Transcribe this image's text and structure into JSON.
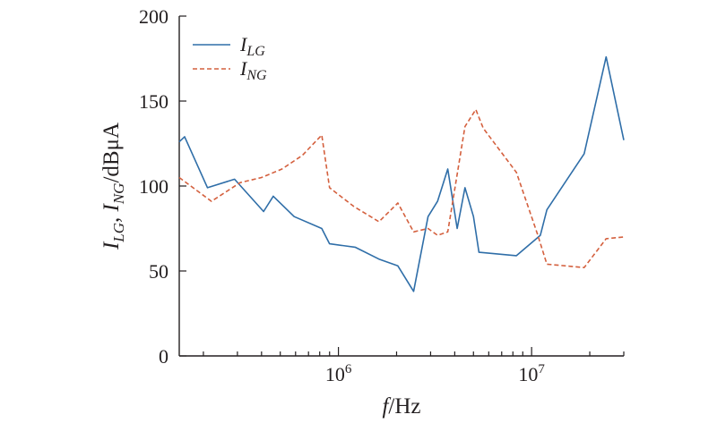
{
  "chart_data": {
    "type": "line",
    "x_scale": "log",
    "xlim": [
      150000,
      30000000
    ],
    "ylim": [
      0,
      200
    ],
    "xlabel": {
      "f": "f",
      "rest": "/Hz"
    },
    "ylabel": {
      "parts": [
        {
          "text": "I",
          "italic": true
        },
        {
          "text": "LG",
          "italic": true,
          "sub": true
        },
        {
          "text": ", ",
          "italic": false
        },
        {
          "text": "I",
          "italic": true
        },
        {
          "text": "NG",
          "italic": true,
          "sub": true
        },
        {
          "text": "/dBμA",
          "italic": false
        }
      ]
    },
    "y_ticks": [
      {
        "value": 0,
        "label": "0"
      },
      {
        "value": 50,
        "label": "50"
      },
      {
        "value": 100,
        "label": "100"
      },
      {
        "value": 150,
        "label": "150"
      },
      {
        "value": 200,
        "label": "200"
      }
    ],
    "x_major_ticks": [
      {
        "value": 1000000,
        "base": "10",
        "exp": "6"
      },
      {
        "value": 10000000,
        "base": "10",
        "exp": "7"
      }
    ],
    "x_minor_ticks": [
      200000,
      300000,
      400000,
      500000,
      600000,
      700000,
      800000,
      900000,
      2000000,
      3000000,
      4000000,
      5000000,
      6000000,
      7000000,
      8000000,
      9000000,
      20000000,
      30000000
    ],
    "legend": {
      "position": "top-left"
    },
    "series": [
      {
        "name": {
          "main": "I",
          "sub": "LG"
        },
        "color": "#2f6ea8",
        "dash": "solid",
        "points": [
          [
            150000,
            126
          ],
          [
            160000,
            129
          ],
          [
            210000,
            99
          ],
          [
            290000,
            104
          ],
          [
            410000,
            85
          ],
          [
            460000,
            94
          ],
          [
            590000,
            82
          ],
          [
            820000,
            75
          ],
          [
            900000,
            66
          ],
          [
            1220000,
            64
          ],
          [
            1620000,
            57
          ],
          [
            2030000,
            53
          ],
          [
            2450000,
            38
          ],
          [
            2910000,
            82
          ],
          [
            3260000,
            91
          ],
          [
            3680000,
            110
          ],
          [
            4120000,
            75
          ],
          [
            4520000,
            99
          ],
          [
            5000000,
            82
          ],
          [
            5340000,
            61
          ],
          [
            8340000,
            59
          ],
          [
            11100000,
            71
          ],
          [
            12000000,
            86
          ],
          [
            18700000,
            119
          ],
          [
            24300000,
            176
          ],
          [
            30000000,
            127
          ]
        ]
      },
      {
        "name": {
          "main": "I",
          "sub": "NG"
        },
        "color": "#d4603e",
        "dash": "dashed",
        "points": [
          [
            150000,
            105
          ],
          [
            220000,
            91
          ],
          [
            310000,
            102
          ],
          [
            400000,
            105
          ],
          [
            510000,
            110
          ],
          [
            650000,
            118
          ],
          [
            820000,
            130
          ],
          [
            900000,
            99
          ],
          [
            1200000,
            88
          ],
          [
            1620000,
            79
          ],
          [
            2030000,
            90
          ],
          [
            2450000,
            73
          ],
          [
            2910000,
            75
          ],
          [
            3260000,
            71
          ],
          [
            3680000,
            73
          ],
          [
            4520000,
            135
          ],
          [
            5140000,
            145
          ],
          [
            5620000,
            134
          ],
          [
            8340000,
            108
          ],
          [
            10700000,
            72
          ],
          [
            12000000,
            54
          ],
          [
            18700000,
            52
          ],
          [
            24300000,
            69
          ],
          [
            30000000,
            70
          ]
        ]
      }
    ]
  }
}
